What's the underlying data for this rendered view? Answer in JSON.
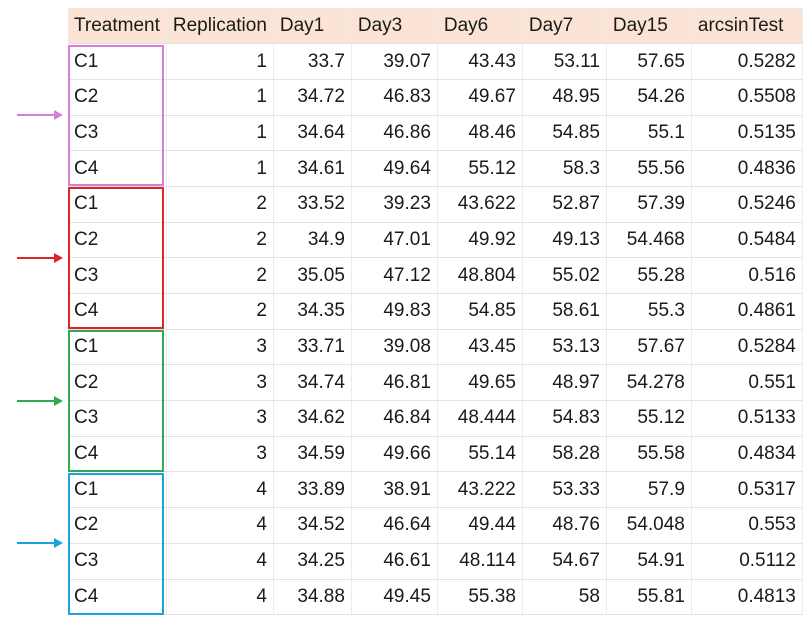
{
  "table": {
    "columns": [
      "Treatment",
      "Replication",
      "Day1",
      "Day3",
      "Day6",
      "Day7",
      "Day15",
      "arcsinTest"
    ],
    "rows": [
      [
        "C1",
        "1",
        "33.7",
        "39.07",
        "43.43",
        "53.11",
        "57.65",
        "0.5282"
      ],
      [
        "C2",
        "1",
        "34.72",
        "46.83",
        "49.67",
        "48.95",
        "54.26",
        "0.5508"
      ],
      [
        "C3",
        "1",
        "34.64",
        "46.86",
        "48.46",
        "54.85",
        "55.1",
        "0.5135"
      ],
      [
        "C4",
        "1",
        "34.61",
        "49.64",
        "55.12",
        "58.3",
        "55.56",
        "0.4836"
      ],
      [
        "C1",
        "2",
        "33.52",
        "39.23",
        "43.622",
        "52.87",
        "57.39",
        "0.5246"
      ],
      [
        "C2",
        "2",
        "34.9",
        "47.01",
        "49.92",
        "49.13",
        "54.468",
        "0.5484"
      ],
      [
        "C3",
        "2",
        "35.05",
        "47.12",
        "48.804",
        "55.02",
        "55.28",
        "0.516"
      ],
      [
        "C4",
        "2",
        "34.35",
        "49.83",
        "54.85",
        "58.61",
        "55.3",
        "0.4861"
      ],
      [
        "C1",
        "3",
        "33.71",
        "39.08",
        "43.45",
        "53.13",
        "57.67",
        "0.5284"
      ],
      [
        "C2",
        "3",
        "34.74",
        "46.81",
        "49.65",
        "48.97",
        "54.278",
        "0.551"
      ],
      [
        "C3",
        "3",
        "34.62",
        "46.84",
        "48.444",
        "54.83",
        "55.12",
        "0.5133"
      ],
      [
        "C4",
        "3",
        "34.59",
        "49.66",
        "55.14",
        "58.28",
        "55.58",
        "0.4834"
      ],
      [
        "C1",
        "4",
        "33.89",
        "38.91",
        "43.222",
        "53.33",
        "57.9",
        "0.5317"
      ],
      [
        "C2",
        "4",
        "34.52",
        "46.64",
        "49.44",
        "48.76",
        "54.048",
        "0.553"
      ],
      [
        "C3",
        "4",
        "34.25",
        "46.61",
        "48.114",
        "54.67",
        "54.91",
        "0.5112"
      ],
      [
        "C4",
        "4",
        "34.88",
        "49.45",
        "55.38",
        "58",
        "55.81",
        "0.4813"
      ]
    ]
  },
  "groups": [
    {
      "replication": "1",
      "color": "#d77fd6"
    },
    {
      "replication": "2",
      "color": "#e0242a"
    },
    {
      "replication": "3",
      "color": "#34a853"
    },
    {
      "replication": "4",
      "color": "#1aa3e0"
    }
  ],
  "colors": {
    "header_bg": "#fbe4d5",
    "grid": "#e3e3e3"
  }
}
